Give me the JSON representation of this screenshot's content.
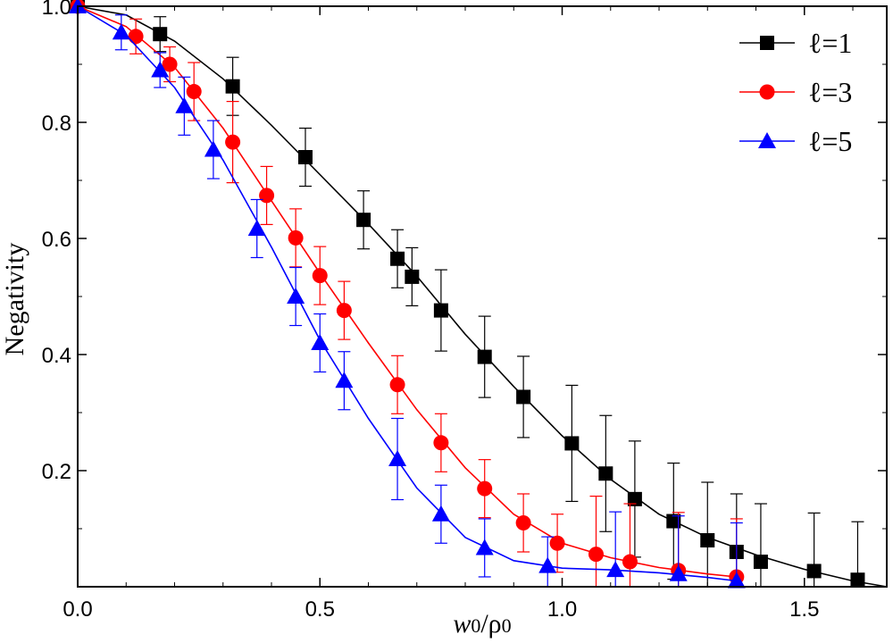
{
  "chart_data": {
    "type": "scatter",
    "xlabel": "w0/ρ0",
    "xlabel_parts": {
      "sym": "w",
      "sub1": "0",
      "sep": "/ρ",
      "sub2": "0"
    },
    "ylabel": "Negativity",
    "xlim": [
      0.0,
      1.67
    ],
    "ylim": [
      0.0,
      1.0
    ],
    "x_ticks": [
      0.0,
      0.5,
      1.0,
      1.5
    ],
    "x_tick_labels": [
      "0.0",
      "0.5",
      "1.0",
      "1.5"
    ],
    "y_ticks": [
      0.2,
      0.4,
      0.6,
      0.8,
      1.0
    ],
    "y_tick_labels": [
      "0.2",
      "0.4",
      "0.6",
      "0.8",
      "1.0"
    ],
    "grid": false,
    "legend_position": "top-right",
    "series": [
      {
        "name": "ℓ=1",
        "color": "#000000",
        "marker": "square",
        "points": [
          [
            0.0,
            1.0,
            0.0
          ],
          [
            0.17,
            0.952,
            0.03
          ],
          [
            0.32,
            0.862,
            0.05
          ],
          [
            0.47,
            0.74,
            0.05
          ],
          [
            0.59,
            0.632,
            0.05
          ],
          [
            0.66,
            0.565,
            0.05
          ],
          [
            0.69,
            0.534,
            0.05
          ],
          [
            0.75,
            0.476,
            0.07
          ],
          [
            0.84,
            0.396,
            0.07
          ],
          [
            0.92,
            0.327,
            0.07
          ],
          [
            1.02,
            0.247,
            0.1
          ],
          [
            1.09,
            0.195,
            0.1
          ],
          [
            1.15,
            0.151,
            0.1
          ],
          [
            1.23,
            0.113,
            0.1
          ],
          [
            1.3,
            0.08,
            0.1
          ],
          [
            1.36,
            0.06,
            0.1
          ],
          [
            1.41,
            0.043,
            0.1
          ],
          [
            1.52,
            0.027,
            0.1
          ],
          [
            1.61,
            0.012,
            0.1
          ]
        ],
        "curve": [
          [
            0.0,
            1.0
          ],
          [
            0.1,
            0.985
          ],
          [
            0.2,
            0.94
          ],
          [
            0.3,
            0.875
          ],
          [
            0.4,
            0.795
          ],
          [
            0.5,
            0.71
          ],
          [
            0.6,
            0.625
          ],
          [
            0.7,
            0.535
          ],
          [
            0.8,
            0.435
          ],
          [
            0.9,
            0.345
          ],
          [
            1.0,
            0.26
          ],
          [
            1.1,
            0.185
          ],
          [
            1.2,
            0.125
          ],
          [
            1.3,
            0.085
          ],
          [
            1.4,
            0.055
          ],
          [
            1.5,
            0.03
          ],
          [
            1.6,
            0.01
          ],
          [
            1.67,
            0.0
          ]
        ]
      },
      {
        "name": "ℓ=3",
        "color": "#ff0000",
        "marker": "circle",
        "points": [
          [
            0.0,
            1.0,
            0.0
          ],
          [
            0.12,
            0.948,
            0.03
          ],
          [
            0.19,
            0.9,
            0.03
          ],
          [
            0.24,
            0.853,
            0.05
          ],
          [
            0.32,
            0.766,
            0.07
          ],
          [
            0.39,
            0.674,
            0.05
          ],
          [
            0.45,
            0.601,
            0.05
          ],
          [
            0.5,
            0.536,
            0.05
          ],
          [
            0.55,
            0.476,
            0.05
          ],
          [
            0.66,
            0.348,
            0.05
          ],
          [
            0.75,
            0.248,
            0.05
          ],
          [
            0.84,
            0.169,
            0.05
          ],
          [
            0.92,
            0.11,
            0.05
          ],
          [
            0.99,
            0.075,
            0.05
          ],
          [
            1.07,
            0.056,
            0.1
          ],
          [
            1.14,
            0.043,
            0.1
          ],
          [
            1.24,
            0.028,
            0.1
          ],
          [
            1.36,
            0.017,
            0.1
          ]
        ],
        "curve": [
          [
            0.0,
            1.0
          ],
          [
            0.1,
            0.965
          ],
          [
            0.2,
            0.895
          ],
          [
            0.3,
            0.79
          ],
          [
            0.4,
            0.665
          ],
          [
            0.5,
            0.54
          ],
          [
            0.6,
            0.42
          ],
          [
            0.7,
            0.305
          ],
          [
            0.8,
            0.205
          ],
          [
            0.9,
            0.125
          ],
          [
            1.0,
            0.075
          ],
          [
            1.1,
            0.05
          ],
          [
            1.2,
            0.033
          ],
          [
            1.3,
            0.022
          ],
          [
            1.36,
            0.017
          ]
        ]
      },
      {
        "name": "ℓ=5",
        "color": "#0000ff",
        "marker": "triangle",
        "points": [
          [
            0.0,
            1.0,
            0.0
          ],
          [
            0.09,
            0.955,
            0.03
          ],
          [
            0.17,
            0.89,
            0.03
          ],
          [
            0.22,
            0.828,
            0.05
          ],
          [
            0.28,
            0.753,
            0.05
          ],
          [
            0.37,
            0.617,
            0.05
          ],
          [
            0.45,
            0.5,
            0.05
          ],
          [
            0.5,
            0.42,
            0.05
          ],
          [
            0.55,
            0.355,
            0.05
          ],
          [
            0.66,
            0.22,
            0.07
          ],
          [
            0.75,
            0.125,
            0.05
          ],
          [
            0.84,
            0.067,
            0.05
          ],
          [
            0.97,
            0.036,
            0.05
          ],
          [
            1.11,
            0.029,
            0.1
          ],
          [
            1.24,
            0.022,
            0.1
          ],
          [
            1.36,
            0.01,
            0.1
          ]
        ],
        "curve": [
          [
            0.0,
            1.0
          ],
          [
            0.1,
            0.95
          ],
          [
            0.2,
            0.86
          ],
          [
            0.3,
            0.735
          ],
          [
            0.4,
            0.585
          ],
          [
            0.5,
            0.425
          ],
          [
            0.6,
            0.29
          ],
          [
            0.7,
            0.17
          ],
          [
            0.8,
            0.085
          ],
          [
            0.9,
            0.045
          ],
          [
            1.0,
            0.032
          ],
          [
            1.1,
            0.029
          ],
          [
            1.2,
            0.024
          ],
          [
            1.3,
            0.016
          ],
          [
            1.36,
            0.01
          ]
        ]
      }
    ]
  }
}
